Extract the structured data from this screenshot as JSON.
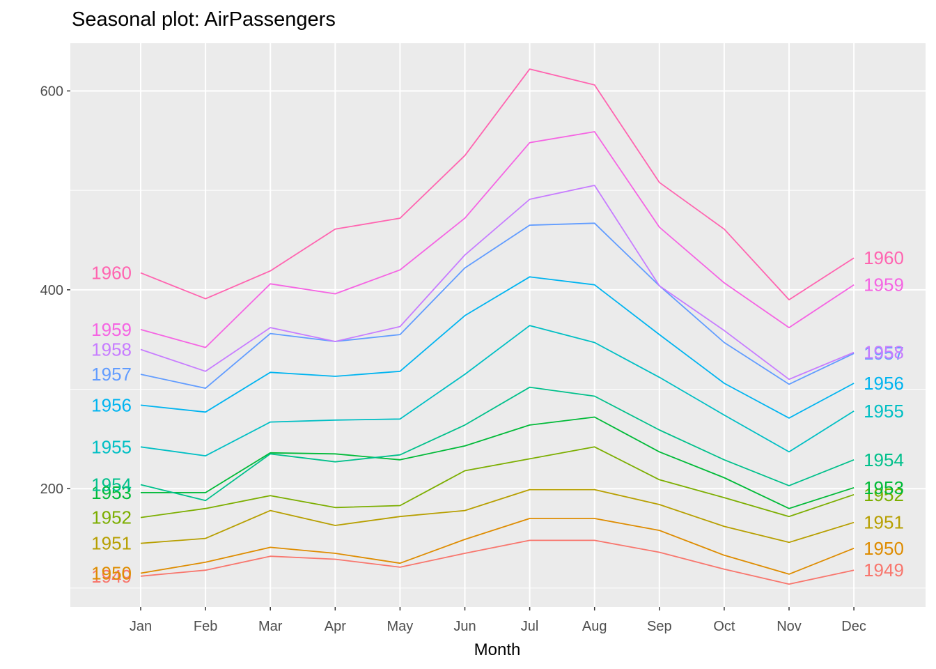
{
  "chart_data": {
    "type": "line",
    "title": "Seasonal plot: AirPassengers",
    "xlabel": "Month",
    "ylabel": "",
    "categories": [
      "Jan",
      "Feb",
      "Mar",
      "Apr",
      "May",
      "Jun",
      "Jul",
      "Aug",
      "Sep",
      "Oct",
      "Nov",
      "Dec"
    ],
    "yticks": [
      200,
      400,
      600
    ],
    "ylim": [
      81,
      648
    ],
    "grid": true,
    "legend": "none",
    "series": [
      {
        "name": "1949",
        "color": "#F8766D",
        "values": [
          112,
          118,
          132,
          129,
          121,
          135,
          148,
          148,
          136,
          119,
          104,
          118
        ]
      },
      {
        "name": "1950",
        "color": "#DE8C00",
        "values": [
          115,
          126,
          141,
          135,
          125,
          149,
          170,
          170,
          158,
          133,
          114,
          140
        ]
      },
      {
        "name": "1951",
        "color": "#B79F00",
        "values": [
          145,
          150,
          178,
          163,
          172,
          178,
          199,
          199,
          184,
          162,
          146,
          166
        ]
      },
      {
        "name": "1952",
        "color": "#7CAE00",
        "values": [
          171,
          180,
          193,
          181,
          183,
          218,
          230,
          242,
          209,
          191,
          172,
          194
        ]
      },
      {
        "name": "1953",
        "color": "#00BA38",
        "values": [
          196,
          196,
          236,
          235,
          229,
          243,
          264,
          272,
          237,
          211,
          180,
          201
        ]
      },
      {
        "name": "1954",
        "color": "#00C08B",
        "values": [
          204,
          188,
          235,
          227,
          234,
          264,
          302,
          293,
          259,
          229,
          203,
          229
        ]
      },
      {
        "name": "1955",
        "color": "#00BFC4",
        "values": [
          242,
          233,
          267,
          269,
          270,
          315,
          364,
          347,
          312,
          274,
          237,
          278
        ]
      },
      {
        "name": "1956",
        "color": "#00B4F0",
        "values": [
          284,
          277,
          317,
          313,
          318,
          374,
          413,
          405,
          355,
          306,
          271,
          306
        ]
      },
      {
        "name": "1957",
        "color": "#619CFF",
        "values": [
          315,
          301,
          356,
          348,
          355,
          422,
          465,
          467,
          404,
          347,
          305,
          336
        ]
      },
      {
        "name": "1958",
        "color": "#C77CFF",
        "values": [
          340,
          318,
          362,
          348,
          363,
          435,
          491,
          505,
          404,
          359,
          310,
          337
        ]
      },
      {
        "name": "1959",
        "color": "#F564E3",
        "values": [
          360,
          342,
          406,
          396,
          420,
          472,
          548,
          559,
          463,
          407,
          362,
          405
        ]
      },
      {
        "name": "1960",
        "color": "#FF64B0",
        "values": [
          417,
          391,
          419,
          461,
          472,
          535,
          622,
          606,
          508,
          461,
          390,
          432
        ]
      }
    ]
  }
}
